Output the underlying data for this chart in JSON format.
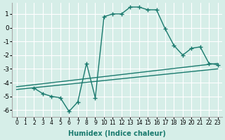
{
  "xlabel": "Humidex (Indice chaleur)",
  "bg_color": "#d6eee8",
  "grid_color": "#ffffff",
  "line_color": "#1a7a6e",
  "xlim": [
    -0.5,
    23.5
  ],
  "ylim": [
    -6.5,
    1.8
  ],
  "xticks": [
    0,
    1,
    2,
    3,
    4,
    5,
    6,
    7,
    8,
    9,
    10,
    11,
    12,
    13,
    14,
    15,
    16,
    17,
    18,
    19,
    20,
    21,
    22,
    23
  ],
  "yticks": [
    1,
    0,
    -1,
    -2,
    -3,
    -4,
    -5,
    -6
  ],
  "series": [
    {
      "x": [
        2,
        3,
        4,
        5,
        6,
        7,
        8,
        9,
        10,
        11,
        12,
        13,
        14,
        15,
        16,
        17,
        18,
        19,
        20,
        21,
        22,
        23
      ],
      "y": [
        -4.4,
        -4.8,
        -5.0,
        -5.1,
        -6.1,
        -5.4,
        -2.6,
        -5.1,
        0.8,
        1.0,
        1.0,
        1.5,
        1.5,
        1.3,
        1.3,
        -0.1,
        -1.3,
        -2.0,
        -1.5,
        -1.4,
        -2.6,
        -2.7
      ]
    },
    {
      "x": [
        0,
        23
      ],
      "y": [
        -4.3,
        -2.6
      ]
    },
    {
      "x": [
        0,
        23
      ],
      "y": [
        -4.5,
        -3.0
      ]
    }
  ]
}
